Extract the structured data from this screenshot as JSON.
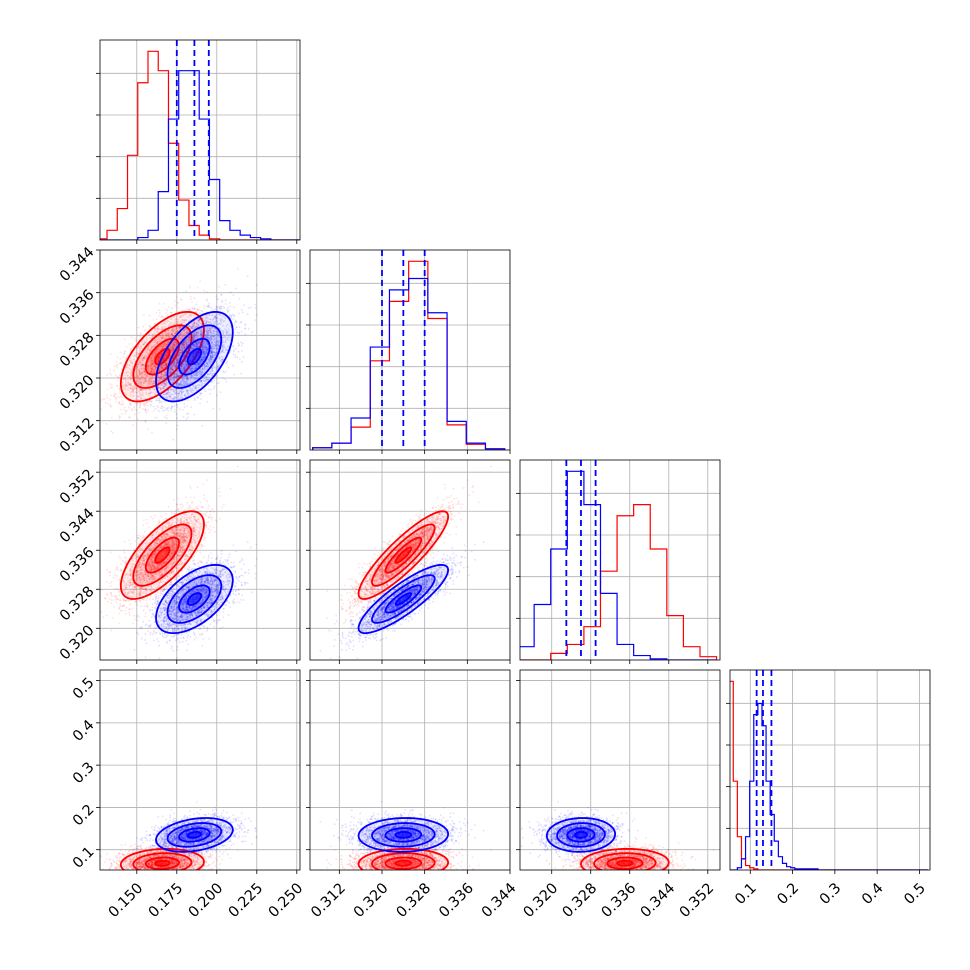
{
  "chart_data": {
    "type": "corner",
    "grid": true,
    "series": [
      {
        "name": "",
        "color": "#ff0000",
        "mean": [
          0.166,
          0.324,
          0.335,
          0.068
        ],
        "std": [
          0.013,
          0.0042,
          0.0045,
          0.017
        ],
        "corr": [
          [
            1,
            0.6,
            0.7,
            0.1
          ],
          [
            0.6,
            1,
            0.88,
            0.05
          ],
          [
            0.7,
            0.88,
            1,
            0.05
          ],
          [
            0.1,
            0.05,
            0.05,
            1
          ]
        ]
      },
      {
        "name": "",
        "color": "#0000ff",
        "mean": [
          0.186,
          0.324,
          0.326,
          0.135
        ],
        "std": [
          0.012,
          0.0042,
          0.0035,
          0.02
        ],
        "corr": [
          [
            1,
            0.55,
            0.55,
            0.3
          ],
          [
            0.55,
            1,
            0.85,
            0.05
          ],
          [
            0.55,
            0.85,
            1,
            0.05
          ],
          [
            0.3,
            0.05,
            0.05,
            1
          ]
        ]
      }
    ],
    "quantile_color": "#0000ff",
    "quantiles": [
      [
        0.175,
        0.186,
        0.195
      ],
      [
        0.32,
        0.324,
        0.328
      ],
      [
        0.323,
        0.326,
        0.329
      ],
      [
        0.115,
        0.13,
        0.15
      ]
    ],
    "histograms": [
      {
        "bins": [
          0.125,
          0.1314,
          0.1378,
          0.1442,
          0.1506,
          0.157,
          0.1634,
          0.1698,
          0.1762,
          0.1826,
          0.189,
          0.1954,
          0.2018,
          0.2082,
          0.2146,
          0.221,
          0.2274,
          0.2338,
          0.2402,
          0.2466,
          0.253
        ],
        "red": [
          1,
          8,
          26,
          70,
          130,
          156,
          140,
          80,
          33,
          12,
          4,
          1,
          0,
          0,
          0,
          0,
          0,
          0,
          0,
          0
        ],
        "blue": [
          0,
          0,
          0,
          0,
          2,
          8,
          40,
          100,
          140,
          140,
          100,
          50,
          16,
          8,
          4,
          2,
          1,
          0,
          0,
          0
        ]
      },
      {
        "bins": [
          0.307,
          0.3106,
          0.3142,
          0.3178,
          0.3214,
          0.325,
          0.3286,
          0.3322,
          0.3358,
          0.3394,
          0.343
        ],
        "red": [
          2,
          6,
          20,
          78,
          130,
          165,
          115,
          22,
          5,
          1
        ],
        "blue": [
          2,
          6,
          28,
          90,
          140,
          150,
          120,
          25,
          6,
          1
        ]
      },
      {
        "bins": [
          0.313,
          0.3164,
          0.3198,
          0.3232,
          0.3266,
          0.33,
          0.3334,
          0.3368,
          0.3402,
          0.3436,
          0.347,
          0.3504,
          0.3538
        ],
        "red": [
          0,
          0,
          6,
          14,
          30,
          80,
          130,
          140,
          100,
          40,
          12,
          3
        ],
        "blue": [
          12,
          50,
          100,
          170,
          140,
          60,
          14,
          4,
          1,
          0,
          0,
          0
        ]
      },
      {
        "bins": [
          0.05,
          0.0597,
          0.0694,
          0.0791,
          0.0888,
          0.0985,
          0.1082,
          0.1179,
          0.1276,
          0.1373,
          0.147,
          0.1567,
          0.1664,
          0.1761,
          0.1858,
          0.1955,
          0.2052,
          0.215,
          0.26,
          0.3,
          0.35,
          0.4,
          0.45,
          0.5,
          0.52
        ],
        "red": [
          170,
          80,
          30,
          10,
          4,
          2,
          1,
          0,
          0,
          0,
          0,
          0,
          0,
          0,
          0,
          0,
          0,
          0,
          0,
          0,
          0,
          0,
          0,
          0
        ],
        "blue": [
          0,
          0,
          2,
          10,
          30,
          80,
          140,
          150,
          130,
          80,
          50,
          26,
          12,
          6,
          3,
          2,
          1,
          1,
          0,
          0,
          0,
          0,
          0,
          0
        ]
      }
    ],
    "axes": [
      {
        "range": [
          0.127,
          0.252
        ],
        "ticks": [
          0.15,
          0.175,
          0.2,
          0.225,
          0.25
        ],
        "tick_labels": [
          "0.150",
          "0.175",
          "0.200",
          "0.225",
          "0.250"
        ]
      },
      {
        "range": [
          0.3065,
          0.344
        ],
        "ticks": [
          0.312,
          0.32,
          0.328,
          0.336,
          0.344
        ],
        "tick_labels": [
          "0.312",
          "0.320",
          "0.328",
          "0.336",
          "0.344"
        ]
      },
      {
        "range": [
          0.3135,
          0.3545
        ],
        "ticks": [
          0.32,
          0.328,
          0.336,
          0.344,
          0.352
        ],
        "tick_labels": [
          "0.320",
          "0.328",
          "0.336",
          "0.344",
          "0.352"
        ]
      },
      {
        "range": [
          0.052,
          0.525
        ],
        "ticks": [
          0.1,
          0.2,
          0.3,
          0.4,
          0.5
        ],
        "tick_labels": [
          "0.1",
          "0.2",
          "0.3",
          "0.4",
          "0.5"
        ]
      }
    ]
  }
}
